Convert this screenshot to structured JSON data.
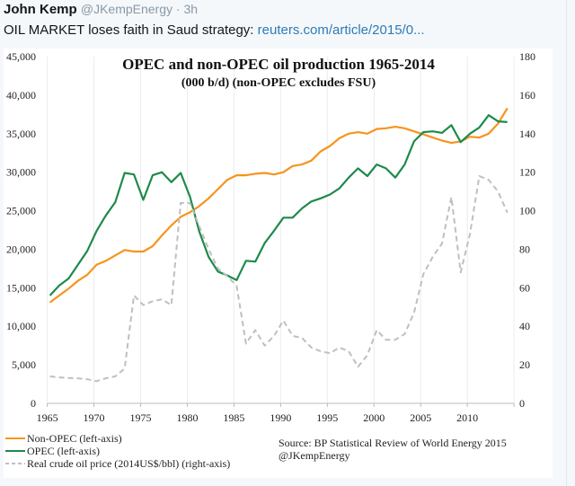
{
  "tweet": {
    "author_name": "John Kemp",
    "handle": "@JKempEnergy",
    "separator": " · ",
    "time": "3h",
    "text": "OIL MARKET loses faith in Saud strategy: ",
    "link_text": "reuters.com/article/2015/0..."
  },
  "colors": {
    "non_opec": "#f7941d",
    "opec": "#1e8a4c",
    "price": "#bfbfbf",
    "link": "#2b7bb9"
  },
  "chart_data": {
    "type": "line",
    "title": "OPEC and non-OPEC oil production 1965-2014",
    "subtitle": "(000 b/d)  (non-OPEC excludes FSU)",
    "xlabel": "",
    "ylabel": "",
    "x": [
      1965,
      1966,
      1967,
      1968,
      1969,
      1970,
      1971,
      1972,
      1973,
      1974,
      1975,
      1976,
      1977,
      1978,
      1979,
      1980,
      1981,
      1982,
      1983,
      1984,
      1985,
      1986,
      1987,
      1988,
      1989,
      1990,
      1991,
      1992,
      1993,
      1994,
      1995,
      1996,
      1997,
      1998,
      1999,
      2000,
      2001,
      2002,
      2003,
      2004,
      2005,
      2006,
      2007,
      2008,
      2009,
      2010,
      2011,
      2012,
      2013,
      2014
    ],
    "x_ticks": [
      "1965",
      "1970",
      "1975",
      "1980",
      "1985",
      "1990",
      "1995",
      "2000",
      "2005",
      "2010"
    ],
    "y_left": {
      "range": [
        0,
        45000
      ],
      "ticks": [
        "0",
        "5,000",
        "10,000",
        "15,000",
        "20,000",
        "25,000",
        "30,000",
        "35,000",
        "40,000",
        "45,000"
      ]
    },
    "y_right": {
      "range": [
        0,
        180
      ],
      "ticks": [
        "0",
        "20",
        "40",
        "60",
        "80",
        "100",
        "120",
        "140",
        "160",
        "180"
      ]
    },
    "grid": "vertical",
    "legend_position": "bottom-left",
    "series": [
      {
        "name": "Non-OPEC (left-axis)",
        "axis": "left",
        "style": "solid",
        "color_key": "non_opec",
        "values": [
          13100,
          14000,
          14900,
          15900,
          16700,
          18000,
          18500,
          19200,
          19900,
          19700,
          19700,
          20400,
          21800,
          23100,
          24200,
          24800,
          25600,
          26600,
          27800,
          29000,
          29600,
          29600,
          29800,
          29900,
          29700,
          30000,
          30800,
          31000,
          31500,
          32700,
          33400,
          34400,
          35000,
          35200,
          35000,
          35600,
          35700,
          35900,
          35700,
          35300,
          34900,
          34500,
          34100,
          33800,
          34000,
          34600,
          34500,
          35000,
          36300,
          38300
        ]
      },
      {
        "name": "OPEC (left-axis)",
        "axis": "left",
        "style": "solid",
        "color_key": "opec",
        "values": [
          14000,
          15300,
          16200,
          18000,
          19800,
          22400,
          24400,
          26100,
          29900,
          29700,
          26400,
          29600,
          30000,
          28700,
          29900,
          26800,
          22300,
          19000,
          17100,
          16600,
          16000,
          18500,
          18400,
          20800,
          22400,
          24100,
          24100,
          25300,
          26200,
          26600,
          27100,
          27900,
          29300,
          30500,
          29500,
          31000,
          30500,
          29300,
          31000,
          34000,
          35200,
          35300,
          35100,
          36100,
          33900,
          35000,
          35800,
          37400,
          36600,
          36500
        ]
      },
      {
        "name": "Real crude oil price (2014US$/bbl) (right-axis)",
        "axis": "right",
        "style": "dashed",
        "color_key": "price",
        "values": [
          14,
          13.5,
          13.2,
          13,
          12.5,
          11.5,
          13,
          14,
          18,
          56,
          51,
          53,
          54,
          51,
          104,
          104,
          92,
          80,
          70,
          66,
          61,
          31,
          38,
          30,
          35,
          43,
          35,
          34,
          29,
          27,
          26,
          29,
          27,
          19,
          25,
          38,
          33,
          33,
          36,
          47,
          67,
          76,
          83,
          107,
          68,
          88,
          118,
          116,
          110,
          99
        ]
      }
    ],
    "annotations": [
      "Source: BP Statistical Review of World Energy 2015",
      "@JKempEnergy"
    ]
  }
}
